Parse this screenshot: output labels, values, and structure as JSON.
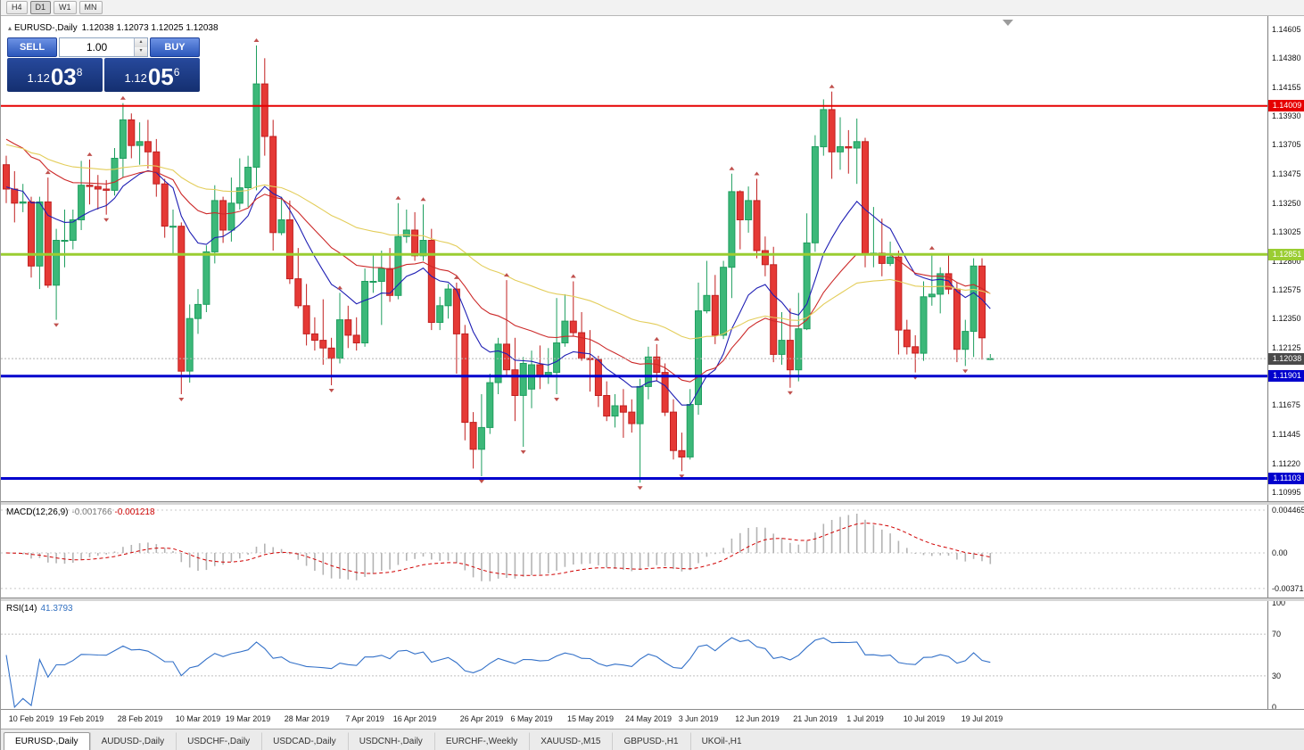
{
  "toolbar": {
    "timeframes": [
      "H4",
      "D1",
      "W1",
      "MN"
    ],
    "active": "D1"
  },
  "chart": {
    "symbol": "EURUSD-,Daily",
    "ohlc": "1.12038 1.12073 1.12025 1.12038"
  },
  "icons": {
    "collapse": "▴",
    "spin_up": "▴",
    "spin_down": "▾"
  },
  "one_click": {
    "sell_label": "SELL",
    "buy_label": "BUY",
    "volume": "1.00",
    "sell_price": {
      "prefix": "1.12",
      "pips": "03",
      "frac": "8"
    },
    "buy_price": {
      "prefix": "1.12",
      "pips": "05",
      "frac": "6"
    }
  },
  "price_axis": {
    "labels": [
      "1.14605",
      "1.14380",
      "1.14155",
      "1.13930",
      "1.13705",
      "1.13475",
      "1.13250",
      "1.13025",
      "1.12800",
      "1.12575",
      "1.12350",
      "1.12125",
      "1.11900",
      "1.11675",
      "1.11445",
      "1.11220",
      "1.10995"
    ]
  },
  "levels": [
    {
      "name": "resistance-line",
      "price": 1.14009,
      "color": "#e60000",
      "width": 2,
      "tag": "1.14009"
    },
    {
      "name": "pivot-line",
      "price": 1.12851,
      "color": "#9acd32",
      "width": 3,
      "tag": "1.12851"
    },
    {
      "name": "support-line-1",
      "price": 1.11901,
      "color": "#0000cd",
      "width": 3,
      "tag": "1.11901"
    },
    {
      "name": "support-line-2",
      "price": 1.11103,
      "color": "#0000cd",
      "width": 3,
      "tag": "1.11103"
    }
  ],
  "bid": {
    "price": 1.12038,
    "tag": "1.12038",
    "line_color": "#b4b4b4",
    "tag_bg": "#4a4a4a"
  },
  "macd": {
    "name": "MACD(12,26,9)",
    "main_value": "-0.001766",
    "signal_value": "-0.001218",
    "fast": 12,
    "slow": 26,
    "signal_period": 9,
    "hist_color": "#b4b4b4",
    "signal_color": "#d00000",
    "axis": [
      {
        "text": "0.004465",
        "value": 0.004465
      },
      {
        "text": "0.00",
        "value": 0
      },
      {
        "text": "-0.003715",
        "value": -0.003715
      }
    ]
  },
  "rsi": {
    "name": "RSI(14)",
    "value": "41.3793",
    "period": 14,
    "color": "#3270c8",
    "levels": [
      70,
      30
    ],
    "axis": [
      {
        "text": "100",
        "value": 100
      },
      {
        "text": "70",
        "value": 70
      },
      {
        "text": "30",
        "value": 30
      },
      {
        "text": "0",
        "value": 0
      }
    ]
  },
  "tabs": [
    "EURUSD-,Daily",
    "AUDUSD-,Daily",
    "USDCHF-,Daily",
    "USDCAD-,Daily",
    "USDCNH-,Daily",
    "EURCHF-,Weekly",
    "XAUUSD-,M15",
    "GBPUSD-,H1",
    "UKOil-,H1"
  ],
  "active_tab_index": 0,
  "chart_data": {
    "type": "candlestick",
    "symbol": "EURUSD-",
    "period": "Daily",
    "ylim": [
      1.10995,
      1.14605
    ],
    "colors": {
      "bull_fill": "#3cb879",
      "bull_border": "#1e9e5f",
      "bear_fill": "#e53935",
      "bear_border": "#c12020",
      "fractal": "#c0504d"
    },
    "ma_lines": [
      {
        "name": "ma-fast-blue",
        "method": "ema",
        "period": 12,
        "color": "#1f1fb4",
        "seed": 1.1338
      },
      {
        "name": "ma-medium-red",
        "method": "ema",
        "period": 26,
        "color": "#cc2929",
        "seed": 1.1378
      },
      {
        "name": "ma-slow-yellow",
        "method": "ema",
        "period": 55,
        "color": "#e3cd5a",
        "seed": 1.1372
      }
    ],
    "date_labels": [
      {
        "i": 3,
        "t": "10 Feb 2019"
      },
      {
        "i": 9,
        "t": "19 Feb 2019"
      },
      {
        "i": 16,
        "t": "28 Feb 2019"
      },
      {
        "i": 23,
        "t": "10 Mar 2019"
      },
      {
        "i": 29,
        "t": "19 Mar 2019"
      },
      {
        "i": 36,
        "t": "28 Mar 2019"
      },
      {
        "i": 43,
        "t": "7 Apr 2019"
      },
      {
        "i": 49,
        "t": "16 Apr 2019"
      },
      {
        "i": 57,
        "t": "26 Apr 2019"
      },
      {
        "i": 63,
        "t": "6 May 2019"
      },
      {
        "i": 70,
        "t": "15 May 2019"
      },
      {
        "i": 77,
        "t": "24 May 2019"
      },
      {
        "i": 83,
        "t": "3 Jun 2019"
      },
      {
        "i": 90,
        "t": "12 Jun 2019"
      },
      {
        "i": 97,
        "t": "21 Jun 2019"
      },
      {
        "i": 103,
        "t": "1 Jul 2019"
      },
      {
        "i": 110,
        "t": "10 Jul 2019"
      },
      {
        "i": 117,
        "t": "19 Jul 2019"
      }
    ],
    "candles": [
      [
        1.1355,
        1.1362,
        1.1325,
        1.1336
      ],
      [
        1.1336,
        1.135,
        1.131,
        1.1325
      ],
      [
        1.1325,
        1.134,
        1.1318,
        1.1326
      ],
      [
        1.1326,
        1.133,
        1.1267,
        1.1276
      ],
      [
        1.1276,
        1.133,
        1.1258,
        1.1326
      ],
      [
        1.1326,
        1.1345,
        1.1259,
        1.1261
      ],
      [
        1.1261,
        1.1305,
        1.1234,
        1.1296
      ],
      [
        1.1296,
        1.132,
        1.1275,
        1.1296
      ],
      [
        1.1296,
        1.132,
        1.1289,
        1.1312
      ],
      [
        1.1312,
        1.1358,
        1.1304,
        1.1339
      ],
      [
        1.1339,
        1.1359,
        1.1324,
        1.1338
      ],
      [
        1.1338,
        1.1347,
        1.132,
        1.1336
      ],
      [
        1.1336,
        1.1343,
        1.1316,
        1.1335
      ],
      [
        1.1335,
        1.1368,
        1.1331,
        1.136
      ],
      [
        1.136,
        1.1403,
        1.1345,
        1.139
      ],
      [
        1.139,
        1.1395,
        1.136,
        1.137
      ],
      [
        1.137,
        1.1388,
        1.1355,
        1.1373
      ],
      [
        1.1373,
        1.139,
        1.1352,
        1.1365
      ],
      [
        1.1365,
        1.1375,
        1.133,
        1.134
      ],
      [
        1.134,
        1.1344,
        1.1298,
        1.1307
      ],
      [
        1.1307,
        1.132,
        1.1285,
        1.1307
      ],
      [
        1.1307,
        1.131,
        1.1176,
        1.1194
      ],
      [
        1.1194,
        1.1246,
        1.1185,
        1.1235
      ],
      [
        1.1235,
        1.1258,
        1.1223,
        1.1246
      ],
      [
        1.1246,
        1.1292,
        1.124,
        1.1287
      ],
      [
        1.1287,
        1.1339,
        1.1278,
        1.1327
      ],
      [
        1.1327,
        1.133,
        1.1294,
        1.1304
      ],
      [
        1.1304,
        1.1345,
        1.1295,
        1.1325
      ],
      [
        1.1325,
        1.136,
        1.132,
        1.1337
      ],
      [
        1.1337,
        1.1362,
        1.1322,
        1.1353
      ],
      [
        1.1353,
        1.1448,
        1.1335,
        1.1418
      ],
      [
        1.1418,
        1.1438,
        1.1362,
        1.1377
      ],
      [
        1.1377,
        1.139,
        1.1288,
        1.1302
      ],
      [
        1.1302,
        1.133,
        1.13,
        1.1312
      ],
      [
        1.1312,
        1.1327,
        1.1262,
        1.1266
      ],
      [
        1.1266,
        1.129,
        1.1243,
        1.1245
      ],
      [
        1.1245,
        1.1262,
        1.1214,
        1.1223
      ],
      [
        1.1223,
        1.1236,
        1.121,
        1.1218
      ],
      [
        1.1218,
        1.125,
        1.1199,
        1.1212
      ],
      [
        1.1212,
        1.122,
        1.1183,
        1.1204
      ],
      [
        1.1204,
        1.1255,
        1.12,
        1.1234
      ],
      [
        1.1234,
        1.1245,
        1.1212,
        1.1222
      ],
      [
        1.1222,
        1.1236,
        1.121,
        1.1216
      ],
      [
        1.1216,
        1.1274,
        1.1213,
        1.1264
      ],
      [
        1.1264,
        1.1285,
        1.1255,
        1.1264
      ],
      [
        1.1264,
        1.1288,
        1.123,
        1.1274
      ],
      [
        1.1274,
        1.129,
        1.1248,
        1.1253
      ],
      [
        1.1253,
        1.1325,
        1.125,
        1.1299
      ],
      [
        1.1299,
        1.132,
        1.1294,
        1.1304
      ],
      [
        1.1304,
        1.1318,
        1.128,
        1.1284
      ],
      [
        1.1284,
        1.1324,
        1.128,
        1.1296
      ],
      [
        1.1296,
        1.1305,
        1.1226,
        1.1232
      ],
      [
        1.1232,
        1.1252,
        1.1226,
        1.1245
      ],
      [
        1.1245,
        1.1262,
        1.1235,
        1.1258
      ],
      [
        1.1258,
        1.1263,
        1.1192,
        1.1223
      ],
      [
        1.1223,
        1.123,
        1.114,
        1.1154
      ],
      [
        1.1154,
        1.1162,
        1.1118,
        1.1133
      ],
      [
        1.1133,
        1.1176,
        1.1112,
        1.115
      ],
      [
        1.115,
        1.1192,
        1.1145,
        1.1185
      ],
      [
        1.1185,
        1.122,
        1.1176,
        1.1215
      ],
      [
        1.1215,
        1.1265,
        1.119,
        1.1195
      ],
      [
        1.1195,
        1.122,
        1.1155,
        1.1175
      ],
      [
        1.1175,
        1.1205,
        1.1135,
        1.12
      ],
      [
        1.118,
        1.121,
        1.1165,
        1.1199
      ],
      [
        1.1199,
        1.1214,
        1.118,
        1.119
      ],
      [
        1.119,
        1.1212,
        1.1184,
        1.1193
      ],
      [
        1.1193,
        1.1251,
        1.1176,
        1.1216
      ],
      [
        1.1216,
        1.1254,
        1.1213,
        1.1233
      ],
      [
        1.1233,
        1.1264,
        1.1221,
        1.1224
      ],
      [
        1.1224,
        1.124,
        1.1202,
        1.1204
      ],
      [
        1.1204,
        1.1226,
        1.1178,
        1.1203
      ],
      [
        1.1203,
        1.1206,
        1.1166,
        1.1175
      ],
      [
        1.1175,
        1.1186,
        1.1155,
        1.1159
      ],
      [
        1.1159,
        1.1176,
        1.115,
        1.1167
      ],
      [
        1.1167,
        1.118,
        1.1142,
        1.1162
      ],
      [
        1.1162,
        1.1172,
        1.1146,
        1.1153
      ],
      [
        1.1153,
        1.1188,
        1.1107,
        1.1182
      ],
      [
        1.1182,
        1.1213,
        1.1172,
        1.1205
      ],
      [
        1.1205,
        1.1215,
        1.1186,
        1.1193
      ],
      [
        1.1193,
        1.12,
        1.1159,
        1.1162
      ],
      [
        1.1162,
        1.1172,
        1.1125,
        1.1132
      ],
      [
        1.1132,
        1.1146,
        1.1116,
        1.1127
      ],
      [
        1.1127,
        1.118,
        1.1125,
        1.1168
      ],
      [
        1.1168,
        1.1263,
        1.116,
        1.1241
      ],
      [
        1.1241,
        1.128,
        1.1239,
        1.1253
      ],
      [
        1.1253,
        1.1269,
        1.1215,
        1.1222
      ],
      [
        1.1222,
        1.128,
        1.1219,
        1.1275
      ],
      [
        1.1275,
        1.1348,
        1.1251,
        1.1334
      ],
      [
        1.1334,
        1.1335,
        1.1289,
        1.1312
      ],
      [
        1.1312,
        1.1338,
        1.1302,
        1.1327
      ],
      [
        1.1327,
        1.1344,
        1.1282,
        1.1288
      ],
      [
        1.1288,
        1.1299,
        1.1268,
        1.1277
      ],
      [
        1.1277,
        1.1291,
        1.1201,
        1.1207
      ],
      [
        1.1207,
        1.124,
        1.1199,
        1.1218
      ],
      [
        1.1218,
        1.1243,
        1.1181,
        1.1195
      ],
      [
        1.1195,
        1.1255,
        1.1186,
        1.1227
      ],
      [
        1.1227,
        1.1317,
        1.1226,
        1.1294
      ],
      [
        1.1294,
        1.1378,
        1.1287,
        1.1369
      ],
      [
        1.1369,
        1.1406,
        1.1362,
        1.1398
      ],
      [
        1.1398,
        1.1412,
        1.1344,
        1.1365
      ],
      [
        1.1365,
        1.1392,
        1.1351,
        1.1369
      ],
      [
        1.1369,
        1.1382,
        1.1348,
        1.1368
      ],
      [
        1.1368,
        1.1391,
        1.134,
        1.1373
      ],
      [
        1.1373,
        1.1376,
        1.1275,
        1.1285
      ],
      [
        1.1285,
        1.1322,
        1.1275,
        1.1286
      ],
      [
        1.1286,
        1.1313,
        1.1268,
        1.1278
      ],
      [
        1.1278,
        1.1295,
        1.1276,
        1.1283
      ],
      [
        1.1283,
        1.1288,
        1.1207,
        1.1226
      ],
      [
        1.1226,
        1.1234,
        1.1207,
        1.1213
      ],
      [
        1.1213,
        1.1222,
        1.1193,
        1.1208
      ],
      [
        1.1208,
        1.1264,
        1.1202,
        1.1252
      ],
      [
        1.1252,
        1.1286,
        1.1245,
        1.1254
      ],
      [
        1.1254,
        1.1275,
        1.1239,
        1.127
      ],
      [
        1.127,
        1.1285,
        1.1254,
        1.1258
      ],
      [
        1.1258,
        1.1263,
        1.1201,
        1.1211
      ],
      [
        1.1211,
        1.1234,
        1.1198,
        1.1225
      ],
      [
        1.1225,
        1.1282,
        1.1205,
        1.1276
      ],
      [
        1.1276,
        1.1282,
        1.1203,
        1.122
      ],
      [
        1.12038,
        1.12073,
        1.12025,
        1.12038
      ]
    ]
  }
}
